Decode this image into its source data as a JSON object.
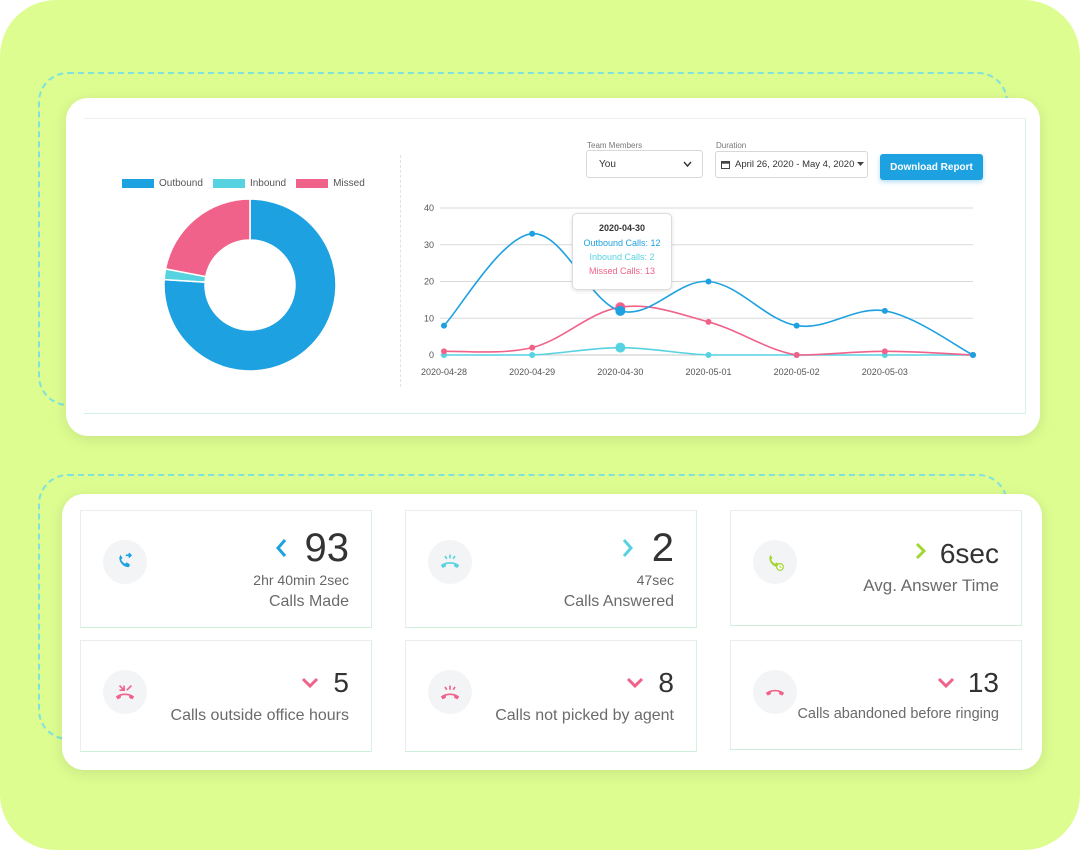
{
  "colors": {
    "outbound": "#1da1e0",
    "inbound": "#56d2e0",
    "missed": "#f0628a",
    "accent": "#1da1e0",
    "green": "#a3d633"
  },
  "legend": [
    {
      "label": "Outbound",
      "color": "#1da1e0"
    },
    {
      "label": "Inbound",
      "color": "#56d2e0"
    },
    {
      "label": "Missed",
      "color": "#f0628a"
    }
  ],
  "donut": {
    "outbound": 76,
    "inbound": 2,
    "missed": 22
  },
  "filters": {
    "team_label": "Team Members",
    "team_value": "You",
    "duration_label": "Duration",
    "duration_value": "April 26, 2020 - May 4, 2020",
    "download_label": "Download Report"
  },
  "chart_data": {
    "type": "line",
    "categories": [
      "2020-04-28",
      "2020-04-29",
      "2020-04-30",
      "2020-05-01",
      "2020-05-02",
      "2020-05-03",
      ""
    ],
    "series": [
      {
        "name": "Outbound Calls",
        "color": "#1da1e0",
        "values": [
          8,
          33,
          12,
          20,
          8,
          12,
          0
        ]
      },
      {
        "name": "Inbound Calls",
        "color": "#56d2e0",
        "values": [
          0,
          0,
          2,
          0,
          0,
          0,
          0
        ]
      },
      {
        "name": "Missed Calls",
        "color": "#f0628a",
        "values": [
          1,
          2,
          13,
          9,
          0,
          1,
          0
        ]
      }
    ],
    "ylim": [
      0,
      40
    ],
    "yticks": [
      0,
      10,
      20,
      30,
      40
    ],
    "xtick_labels": [
      "2020-04-28",
      "2020-04-29",
      "2020-04-30",
      "2020-05-01",
      "2020-05-02",
      "2020-05-03"
    ],
    "tooltip": {
      "title": "2020-04-30",
      "lines": [
        "Outbound Calls: 12",
        "Inbound Calls: 2",
        "Missed Calls: 13"
      ]
    }
  },
  "stats": [
    {
      "key": "calls-made",
      "icon": "outgoing-call-icon",
      "trend": "up",
      "value": "93",
      "sub": "2hr 40min 2sec",
      "label": "Calls Made"
    },
    {
      "key": "calls-answered",
      "icon": "answered-call-icon",
      "trend": "up",
      "value": "2",
      "sub": "47sec",
      "label": "Calls Answered"
    },
    {
      "key": "avg-answer-time",
      "icon": "answer-time-icon",
      "trend": "up",
      "value": "6sec",
      "label": "Avg. Answer Time"
    },
    {
      "key": "calls-outside-hours",
      "icon": "outside-hours-call-icon",
      "trend": "down",
      "value": "5",
      "label": "Calls outside office hours"
    },
    {
      "key": "calls-not-picked",
      "icon": "not-picked-call-icon",
      "trend": "down",
      "value": "8",
      "label": "Calls not picked by agent"
    },
    {
      "key": "calls-abandoned",
      "icon": "hangup-call-icon",
      "trend": "down",
      "value": "13",
      "label": "Calls abandoned before ringing"
    }
  ]
}
